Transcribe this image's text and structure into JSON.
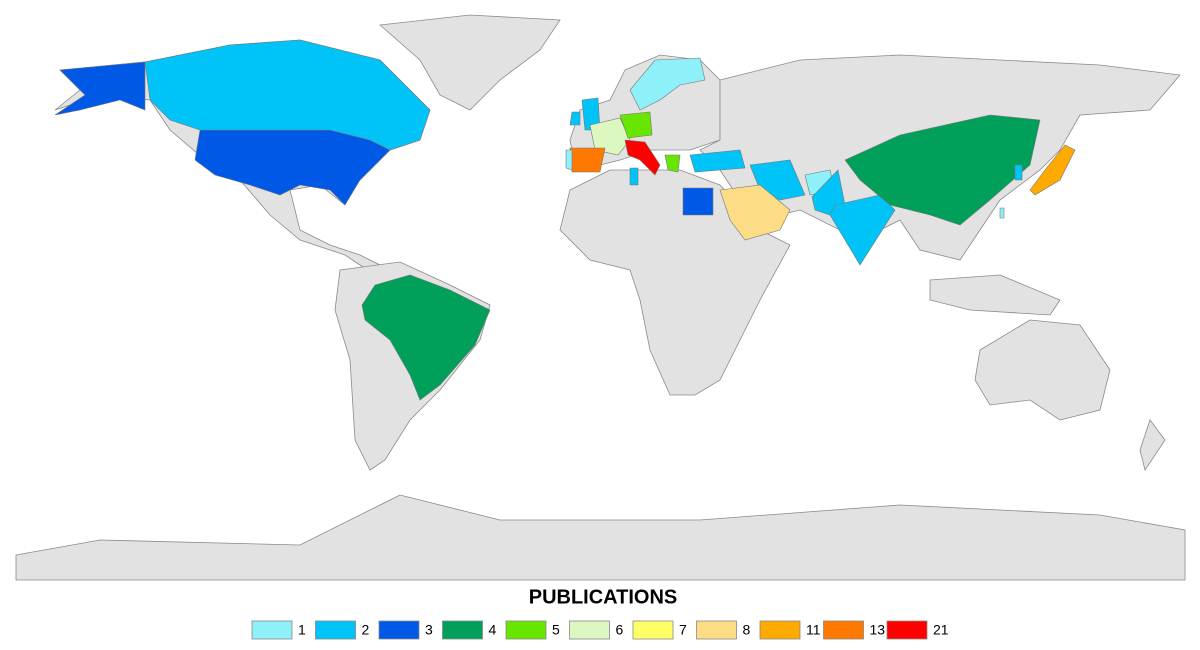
{
  "legend": {
    "title": "PUBLICATIONS",
    "items": [
      {
        "value": 1,
        "color": "#8ef0f8"
      },
      {
        "value": 2,
        "color": "#00c4f8"
      },
      {
        "value": 3,
        "color": "#0059e6"
      },
      {
        "value": 4,
        "color": "#00a05a"
      },
      {
        "value": 5,
        "color": "#66e600"
      },
      {
        "value": 6,
        "color": "#dcf8c0"
      },
      {
        "value": 7,
        "color": "#ffff66"
      },
      {
        "value": 8,
        "color": "#fcdc84"
      },
      {
        "value": 11,
        "color": "#ffaa00"
      },
      {
        "value": 13,
        "color": "#ff7800"
      },
      {
        "value": 21,
        "color": "#ff0000"
      }
    ]
  },
  "regions": [
    3,
    3,
    2,
    4,
    2,
    2,
    1,
    6,
    5,
    13,
    1,
    21,
    5,
    2,
    2,
    1,
    2,
    2,
    4,
    2,
    11,
    1,
    8,
    3,
    2
  ]
}
